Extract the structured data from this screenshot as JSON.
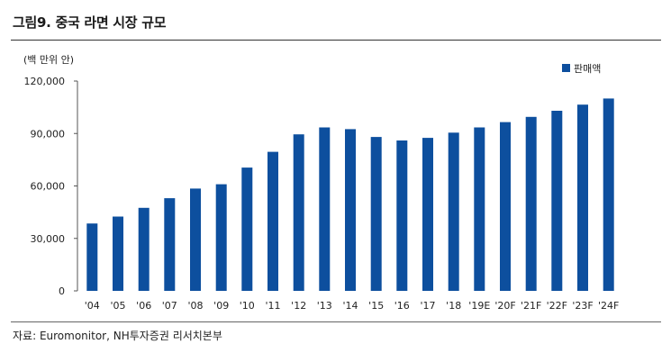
{
  "figure": {
    "title": "그림9. 중국 라면 시장 규모",
    "source": "자료: Euromonitor, NH투자증권 리서치본부"
  },
  "chart_data": {
    "type": "bar",
    "unit_label": "(백 만위 안)",
    "categories": [
      "'04",
      "'05",
      "'06",
      "'07",
      "'08",
      "'09",
      "'10",
      "'11",
      "'12",
      "'13",
      "'14",
      "'15",
      "'16",
      "'17",
      "'18",
      "'19E",
      "'20F",
      "'21F",
      "'22F",
      "'23F",
      "'24F"
    ],
    "series": [
      {
        "name": "판매액",
        "color": "#0d4f9e",
        "values": [
          38500,
          42500,
          47500,
          53000,
          58500,
          61000,
          70500,
          79500,
          89500,
          93500,
          92500,
          88000,
          86000,
          87500,
          90500,
          93500,
          96500,
          99500,
          103000,
          106500,
          110000
        ]
      }
    ],
    "yticks": [
      "120,000",
      "90,000",
      "60,000",
      "30,000",
      "0"
    ],
    "ylim": [
      0,
      120000
    ],
    "legend_position": "top-right",
    "grid": false
  }
}
